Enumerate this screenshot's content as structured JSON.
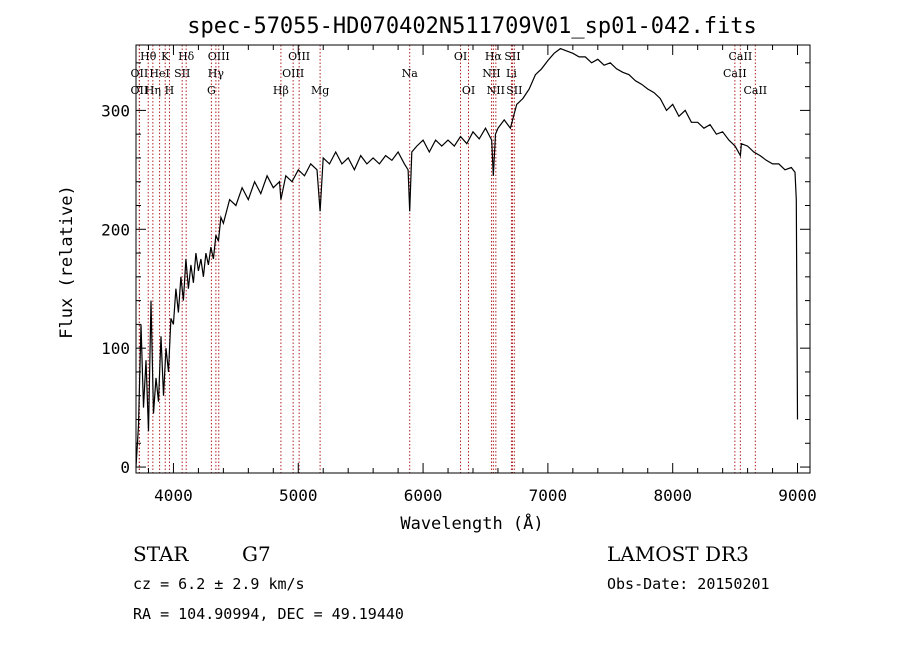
{
  "chart_data": {
    "type": "line",
    "title": "spec-57055-HD070402N511709V01_sp01-042.fits",
    "xlabel": "Wavelength (Å)",
    "ylabel": "Flux (relative)",
    "xlim": [
      3700,
      9100
    ],
    "ylim": [
      -5,
      355
    ],
    "x_ticks": [
      4000,
      5000,
      6000,
      7000,
      8000,
      9000
    ],
    "y_ticks": [
      0,
      100,
      200,
      300
    ],
    "grid": false,
    "series": [
      {
        "x": [
          3700,
          3720,
          3740,
          3760,
          3780,
          3800,
          3820,
          3840,
          3860,
          3880,
          3900,
          3920,
          3940,
          3960,
          3980,
          4000,
          4020,
          4040,
          4060,
          4080,
          4100,
          4120,
          4140,
          4160,
          4180,
          4200,
          4220,
          4240,
          4260,
          4280,
          4300,
          4320,
          4340,
          4360,
          4380,
          4400,
          4450,
          4500,
          4550,
          4600,
          4650,
          4700,
          4750,
          4800,
          4850,
          4861,
          4900,
          4950,
          5000,
          5050,
          5100,
          5150,
          5175,
          5200,
          5250,
          5300,
          5350,
          5400,
          5450,
          5500,
          5550,
          5600,
          5650,
          5700,
          5750,
          5800,
          5850,
          5880,
          5893,
          5910,
          5950,
          6000,
          6050,
          6100,
          6150,
          6200,
          6250,
          6300,
          6350,
          6400,
          6450,
          6500,
          6550,
          6563,
          6580,
          6600,
          6650,
          6700,
          6750,
          6800,
          6850,
          6900,
          6950,
          7000,
          7050,
          7100,
          7150,
          7200,
          7250,
          7300,
          7350,
          7400,
          7450,
          7500,
          7550,
          7600,
          7650,
          7700,
          7750,
          7800,
          7850,
          7900,
          7950,
          8000,
          8050,
          8100,
          8150,
          8200,
          8250,
          8300,
          8350,
          8400,
          8450,
          8500,
          8542,
          8550,
          8600,
          8650,
          8700,
          8750,
          8800,
          8850,
          8900,
          8950,
          8980,
          8990,
          9000
        ],
        "y": [
          0,
          35,
          120,
          50,
          90,
          30,
          140,
          45,
          75,
          55,
          110,
          60,
          100,
          80,
          125,
          120,
          150,
          130,
          160,
          140,
          175,
          150,
          170,
          155,
          180,
          165,
          175,
          160,
          180,
          170,
          185,
          175,
          195,
          190,
          210,
          205,
          225,
          220,
          235,
          225,
          240,
          230,
          245,
          235,
          240,
          225,
          245,
          240,
          250,
          245,
          255,
          250,
          215,
          260,
          255,
          265,
          255,
          260,
          250,
          262,
          255,
          260,
          255,
          262,
          258,
          265,
          255,
          250,
          215,
          265,
          270,
          275,
          265,
          275,
          270,
          275,
          270,
          278,
          272,
          282,
          276,
          285,
          275,
          245,
          280,
          285,
          292,
          285,
          305,
          310,
          318,
          330,
          335,
          342,
          348,
          352,
          350,
          348,
          345,
          345,
          340,
          343,
          338,
          340,
          335,
          332,
          330,
          325,
          322,
          318,
          315,
          310,
          300,
          305,
          295,
          300,
          290,
          290,
          285,
          288,
          280,
          282,
          275,
          270,
          262,
          272,
          270,
          265,
          262,
          258,
          255,
          255,
          250,
          252,
          248,
          225,
          40
        ]
      }
    ],
    "line_markers": [
      {
        "label": "Hθ",
        "x": 3798,
        "row": 0
      },
      {
        "label": "K",
        "x": 3934,
        "row": 0
      },
      {
        "label": "Hδ",
        "x": 4102,
        "row": 0
      },
      {
        "label": "OII",
        "x": 3727,
        "row": 1
      },
      {
        "label": "HeI",
        "x": 3889,
        "row": 1
      },
      {
        "label": "SII",
        "x": 4070,
        "row": 1
      },
      {
        "label": "OII",
        "x": 3727,
        "row": 2
      },
      {
        "label": "Hη",
        "x": 3835,
        "row": 2
      },
      {
        "label": "H",
        "x": 3968,
        "row": 2
      },
      {
        "label": "OIII",
        "x": 4363,
        "row": 0
      },
      {
        "label": "Hγ",
        "x": 4340,
        "row": 1
      },
      {
        "label": "G",
        "x": 4304,
        "row": 2
      },
      {
        "label": "Hβ",
        "x": 4861,
        "row": 2
      },
      {
        "label": "OIII",
        "x": 5007,
        "row": 0
      },
      {
        "label": "OIII",
        "x": 4959,
        "row": 1
      },
      {
        "label": "Mg",
        "x": 5175,
        "row": 2
      },
      {
        "label": "Na",
        "x": 5893,
        "row": 1
      },
      {
        "label": "OI",
        "x": 6300,
        "row": 0
      },
      {
        "label": "OI",
        "x": 6364,
        "row": 2
      },
      {
        "label": "Hα",
        "x": 6563,
        "row": 0
      },
      {
        "label": "SII",
        "x": 6716,
        "row": 0
      },
      {
        "label": "NII",
        "x": 6548,
        "row": 1
      },
      {
        "label": "Li",
        "x": 6708,
        "row": 1
      },
      {
        "label": "NII",
        "x": 6583,
        "row": 2
      },
      {
        "label": "SII",
        "x": 6731,
        "row": 2
      },
      {
        "label": "CaII",
        "x": 8542,
        "row": 0
      },
      {
        "label": "CaII",
        "x": 8498,
        "row": 1
      },
      {
        "label": "CaII",
        "x": 8662,
        "row": 2
      }
    ]
  },
  "info": {
    "object_class": "STAR",
    "subclass": "G7",
    "survey": "LAMOST DR3",
    "redshift": "cz = 6.2 ± 2.9 km/s",
    "obs_date": "Obs-Date: 20150201",
    "coords": "RA = 104.90994, DEC =  49.19440"
  }
}
